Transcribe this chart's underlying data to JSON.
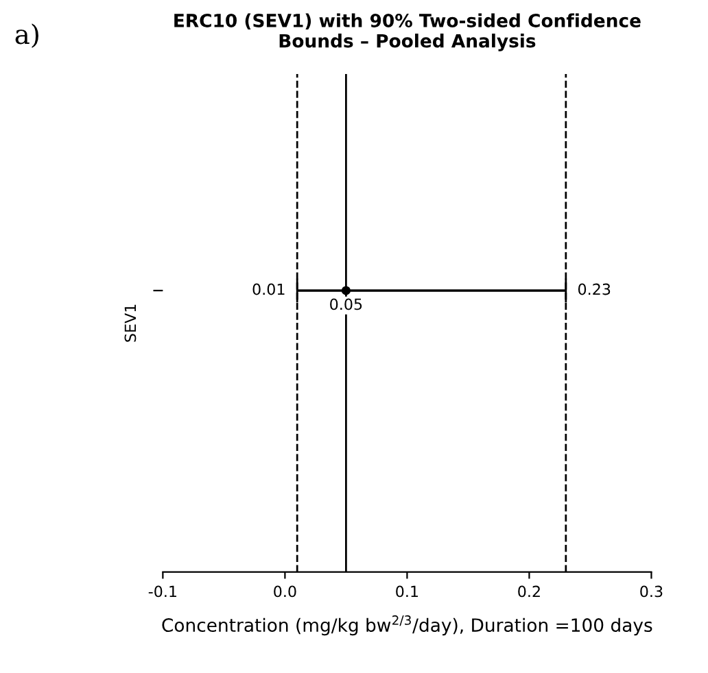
{
  "chart_data": {
    "type": "scatter",
    "orientation": "horizontal",
    "title": "ERC10 (SEV1) with 90% Two-sided Confidence\nBounds – Pooled Analysis",
    "xlabel": "Concentration (mg/kg bw$^{2/3}$/day), Duration =100 days",
    "ylabel": "SEV1",
    "categories": [
      null
    ],
    "values": [
      0.05
    ],
    "errors": [
      [
        0.01,
        0.23
      ]
    ],
    "value_labels": [
      "0.05"
    ],
    "color": "#000000",
    "marker": "circle",
    "xlim": [
      -0.1,
      0.3
    ],
    "xticks": [
      -0.1,
      {
        "value": 0,
        "label": "0.0"
      },
      0.1,
      0.2,
      0.3
    ],
    "grid": false,
    "legend": false,
    "ref_lines": [
      {
        "axis": "x",
        "value": 0.01,
        "line_style": "dashed",
        "color": "#000000"
      },
      {
        "axis": "x",
        "value": 0.23,
        "line_style": "dashed",
        "color": "#000000"
      },
      {
        "axis": "x",
        "value": 0.05,
        "line_style": "solid",
        "color": "#000000"
      }
    ],
    "annotations": [
      "a)",
      "0.01",
      "0.23"
    ]
  }
}
